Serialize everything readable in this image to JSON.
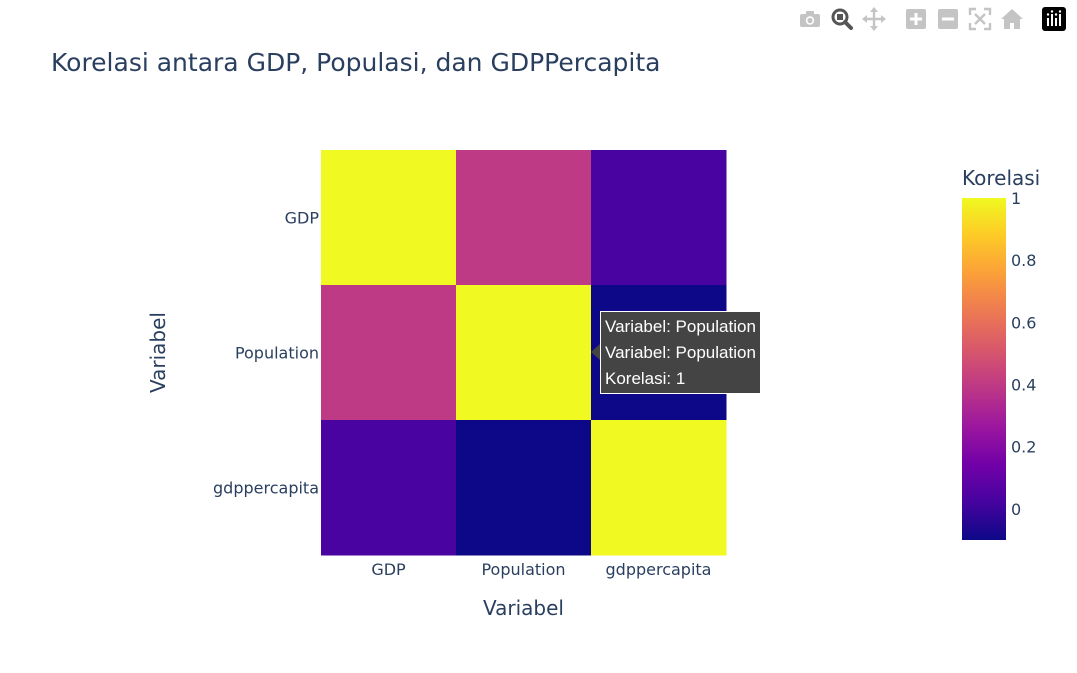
{
  "modebar": {
    "buttons": [
      {
        "name": "download-plot-button",
        "icon": "camera-icon"
      },
      {
        "name": "zoom-button",
        "icon": "zoom-icon"
      },
      {
        "name": "pan-button",
        "icon": "pan-icon"
      },
      {
        "name": "zoom-in-button",
        "icon": "plus-square-icon"
      },
      {
        "name": "zoom-out-button",
        "icon": "minus-square-icon"
      },
      {
        "name": "autoscale-button",
        "icon": "autoscale-icon"
      },
      {
        "name": "reset-axes-button",
        "icon": "home-icon"
      },
      {
        "name": "plotly-logo-button",
        "icon": "plotly-logo-icon"
      }
    ]
  },
  "tooltip": {
    "line1": "Variabel: Population",
    "line2": "Variabel: Population",
    "line3": "Korelasi: 1"
  },
  "chart_data": {
    "type": "heatmap",
    "title": "Korelasi antara GDP, Populasi, dan GDPPercapita",
    "xlabel": "Variabel",
    "ylabel": "Variabel",
    "x": [
      "GDP",
      "Population",
      "gdppercapita"
    ],
    "y": [
      "GDP",
      "Population",
      "gdppercapita"
    ],
    "z": [
      [
        1,
        0.4,
        0.03
      ],
      [
        0.4,
        1,
        -0.1
      ],
      [
        0.03,
        -0.1,
        1
      ]
    ],
    "colorbar": {
      "title": "Korelasi",
      "range": [
        -0.1,
        1
      ],
      "tick_values": [
        0,
        0.2,
        0.4,
        0.6,
        0.8,
        1
      ],
      "tick_labels": [
        "0",
        "0.2",
        "0.4",
        "0.6",
        "0.8",
        "1"
      ],
      "colorscale": [
        "#0d0887",
        "#46039f",
        "#7201a8",
        "#9c179e",
        "#bd3786",
        "#d8576b",
        "#ed7953",
        "#fb9f3a",
        "#fdca26",
        "#f0f921"
      ]
    },
    "grid": false
  }
}
